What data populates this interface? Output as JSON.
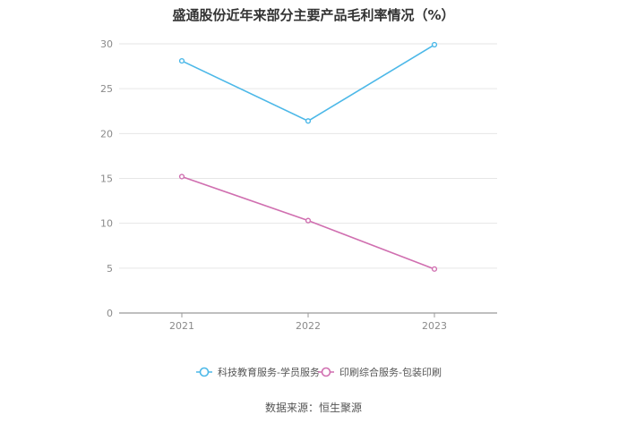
{
  "chart_data": {
    "type": "line",
    "title": "盛通股份近年来部分主要产品毛利率情况（%）",
    "categories": [
      "2021",
      "2022",
      "2023"
    ],
    "series": [
      {
        "name": "科技教育服务-学员服务",
        "values": [
          28.1,
          21.4,
          29.9
        ],
        "color": "#4cb8e8"
      },
      {
        "name": "印刷综合服务-包装印刷",
        "values": [
          15.2,
          10.3,
          4.9
        ],
        "color": "#d06fb0"
      }
    ],
    "ylim": [
      0,
      30
    ],
    "yticks": [
      0,
      5,
      10,
      15,
      20,
      25,
      30
    ],
    "grid": true,
    "legend_position": "bottom",
    "xlabel": "",
    "ylabel": ""
  },
  "source": "数据来源：恒生聚源"
}
